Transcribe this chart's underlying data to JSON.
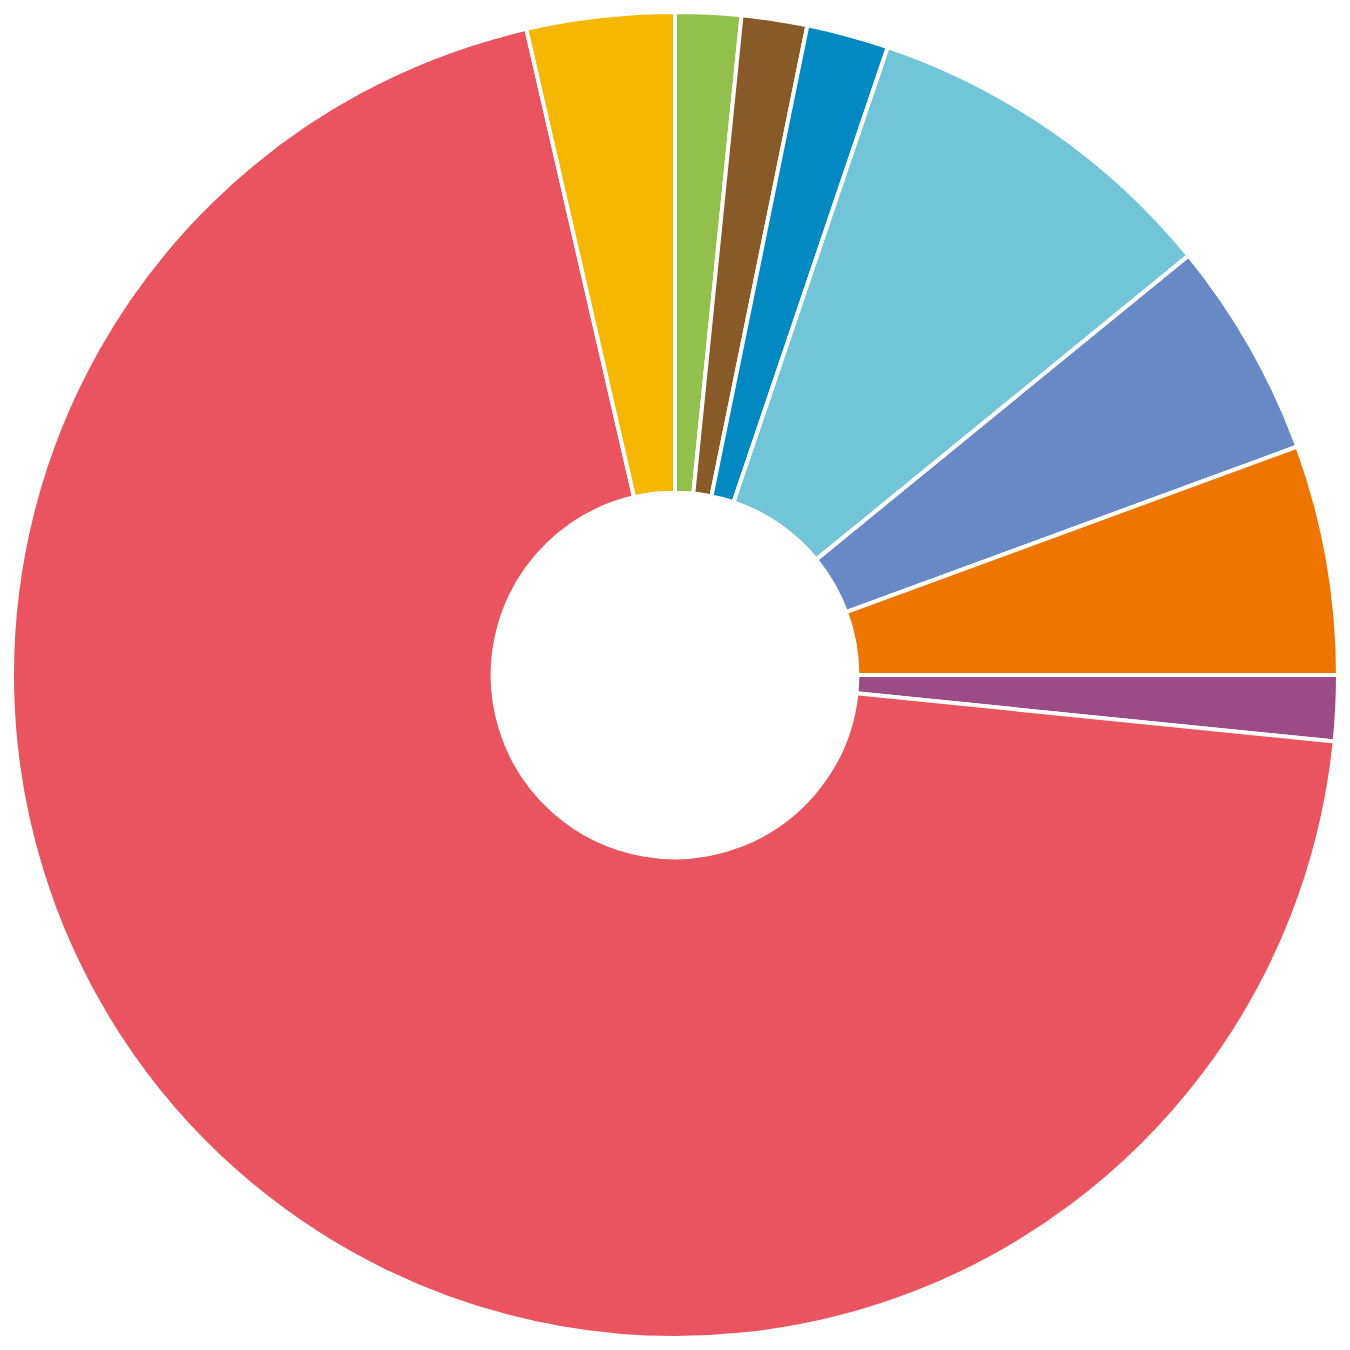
{
  "chart_data": {
    "type": "donut",
    "categories": [
      null,
      null,
      null,
      null,
      null,
      null,
      null,
      null,
      null
    ],
    "values": [
      1.6,
      1.6,
      2.0,
      8.9,
      5.3,
      5.6,
      1.6,
      69.8,
      3.6
    ],
    "colors": [
      "#92c04c",
      "#875a27",
      "#0289c1",
      "#72c5d9",
      "#678ac6",
      "#ee7600",
      "#9b4c84",
      "#e9545e",
      "#f5b700"
    ],
    "legend": false
  }
}
